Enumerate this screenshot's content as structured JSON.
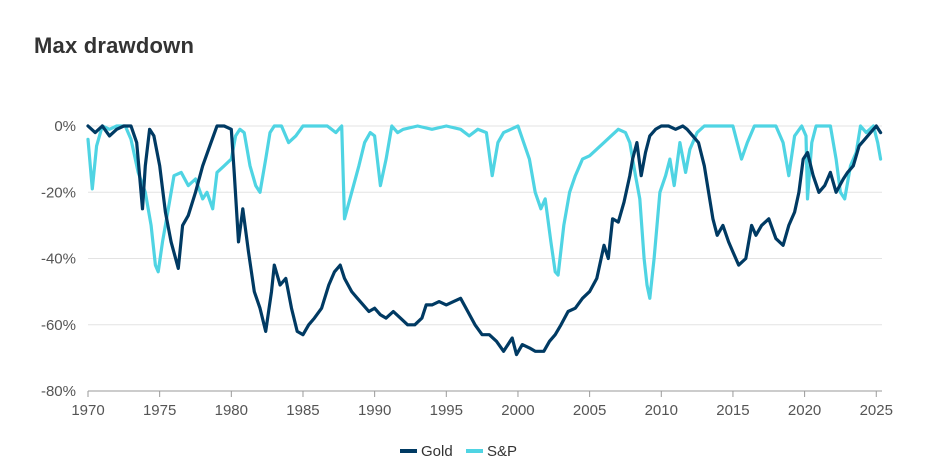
{
  "chart_data": {
    "type": "line",
    "title": "Max drawdown",
    "xlabel": "",
    "ylabel": "",
    "xlim": [
      1970,
      2025.4
    ],
    "ylim": [
      -80,
      0
    ],
    "x_ticks": [
      1970,
      1975,
      1980,
      1985,
      1990,
      1995,
      2000,
      2005,
      2010,
      2015,
      2020,
      2025
    ],
    "y_ticks": [
      0,
      -20,
      -40,
      -60,
      -80
    ],
    "y_tick_labels": [
      "0%",
      "-20%",
      "-40%",
      "-60%",
      "-80%"
    ],
    "grid": "horizontal",
    "legend": "bottom-center",
    "series": [
      {
        "name": "Gold",
        "color": "#003a63",
        "x": [
          1970.0,
          1970.5,
          1971.0,
          1971.5,
          1972.0,
          1972.5,
          1973.0,
          1973.4,
          1973.8,
          1974.0,
          1974.3,
          1974.6,
          1975.0,
          1975.4,
          1975.8,
          1976.3,
          1976.6,
          1977.0,
          1977.5,
          1978.0,
          1978.5,
          1979.0,
          1979.5,
          1980.0,
          1980.2,
          1980.5,
          1980.8,
          1981.2,
          1981.6,
          1982.0,
          1982.4,
          1982.8,
          1983.0,
          1983.4,
          1983.8,
          1984.2,
          1984.6,
          1985.0,
          1985.4,
          1985.8,
          1986.3,
          1986.8,
          1987.2,
          1987.6,
          1987.9,
          1988.4,
          1988.8,
          1989.2,
          1989.6,
          1990.0,
          1990.4,
          1990.8,
          1991.3,
          1991.8,
          1992.3,
          1992.8,
          1993.3,
          1993.6,
          1994.0,
          1994.5,
          1995.0,
          1995.5,
          1996.0,
          1996.5,
          1997.0,
          1997.5,
          1998.0,
          1998.5,
          1999.0,
          1999.6,
          1999.9,
          2000.3,
          2000.8,
          2001.2,
          2001.8,
          2002.2,
          2002.6,
          2003.0,
          2003.5,
          2004.0,
          2004.5,
          2005.0,
          2005.5,
          2006.0,
          2006.3,
          2006.6,
          2007.0,
          2007.4,
          2007.8,
          2008.0,
          2008.3,
          2008.6,
          2008.9,
          2009.2,
          2009.6,
          2010.0,
          2010.5,
          2011.0,
          2011.5,
          2011.8,
          2012.2,
          2012.6,
          2013.0,
          2013.3,
          2013.6,
          2013.9,
          2014.3,
          2014.7,
          2015.0,
          2015.4,
          2015.9,
          2016.3,
          2016.6,
          2017.0,
          2017.5,
          2018.0,
          2018.5,
          2018.9,
          2019.3,
          2019.6,
          2019.9,
          2020.2,
          2020.6,
          2021.0,
          2021.4,
          2021.8,
          2022.2,
          2022.7,
          2023.0,
          2023.4,
          2023.8,
          2024.2,
          2024.6,
          2025.0,
          2025.3
        ],
        "values": [
          0,
          -2,
          0,
          -3,
          -1,
          0,
          0,
          -5,
          -25,
          -12,
          -1,
          -3,
          -12,
          -26,
          -35,
          -43,
          -30,
          -27,
          -20,
          -12,
          -6,
          0,
          0,
          -1,
          -14,
          -35,
          -25,
          -38,
          -50,
          -55,
          -62,
          -50,
          -42,
          -48,
          -46,
          -55,
          -62,
          -63,
          -60,
          -58,
          -55,
          -48,
          -44,
          -42,
          -46,
          -50,
          -52,
          -54,
          -56,
          -55,
          -57,
          -58,
          -56,
          -58,
          -60,
          -60,
          -58,
          -54,
          -54,
          -53,
          -54,
          -53,
          -52,
          -56,
          -60,
          -63,
          -63,
          -65,
          -68,
          -64,
          -69,
          -66,
          -67,
          -68,
          -68,
          -65,
          -63,
          -60,
          -56,
          -55,
          -52,
          -50,
          -46,
          -36,
          -40,
          -28,
          -29,
          -23,
          -15,
          -10,
          -5,
          -15,
          -8,
          -3,
          -1,
          0,
          0,
          -1,
          0,
          -1,
          -3,
          -5,
          -12,
          -20,
          -28,
          -33,
          -30,
          -35,
          -38,
          -42,
          -40,
          -30,
          -33,
          -30,
          -28,
          -34,
          -36,
          -30,
          -26,
          -20,
          -10,
          -8,
          -15,
          -20,
          -18,
          -14,
          -20,
          -16,
          -14,
          -12,
          -6,
          -4,
          -2,
          0,
          -2
        ]
      },
      {
        "name": "S&P",
        "color": "#4fd4e3",
        "x": [
          1970.0,
          1970.3,
          1970.6,
          1971.0,
          1971.5,
          1972.0,
          1972.6,
          1973.0,
          1973.5,
          1974.0,
          1974.4,
          1974.7,
          1974.9,
          1975.2,
          1975.6,
          1976.0,
          1976.5,
          1977.0,
          1977.5,
          1978.0,
          1978.3,
          1978.7,
          1979.0,
          1979.5,
          1980.0,
          1980.3,
          1980.6,
          1980.9,
          1981.3,
          1981.7,
          1982.0,
          1982.4,
          1982.7,
          1983.0,
          1983.5,
          1984.0,
          1984.5,
          1985.0,
          1986.0,
          1986.7,
          1987.3,
          1987.7,
          1987.9,
          1988.4,
          1988.9,
          1989.3,
          1989.7,
          1990.0,
          1990.4,
          1990.8,
          1991.2,
          1991.6,
          1992.0,
          1993.0,
          1994.0,
          1995.0,
          1996.0,
          1996.6,
          1997.2,
          1997.8,
          1998.2,
          1998.6,
          1999.0,
          1999.5,
          2000.0,
          2000.4,
          2000.8,
          2001.2,
          2001.6,
          2001.9,
          2002.3,
          2002.6,
          2002.8,
          2003.2,
          2003.6,
          2004.0,
          2004.5,
          2005.0,
          2005.5,
          2006.0,
          2006.5,
          2007.0,
          2007.5,
          2007.8,
          2008.2,
          2008.5,
          2008.8,
          2009.0,
          2009.2,
          2009.5,
          2009.9,
          2010.3,
          2010.6,
          2010.9,
          2011.3,
          2011.7,
          2012.0,
          2012.5,
          2013.0,
          2013.5,
          2014.0,
          2015.0,
          2015.6,
          2016.0,
          2016.5,
          2017.0,
          2018.0,
          2018.5,
          2018.9,
          2019.3,
          2019.8,
          2020.1,
          2020.2,
          2020.5,
          2020.8,
          2021.3,
          2021.8,
          2022.2,
          2022.5,
          2022.8,
          2023.2,
          2023.6,
          2023.9,
          2024.3,
          2024.8,
          2025.1,
          2025.3
        ],
        "values": [
          -4,
          -19,
          -6,
          0,
          -1,
          0,
          0,
          -4,
          -14,
          -20,
          -30,
          -42,
          -44,
          -35,
          -25,
          -15,
          -14,
          -18,
          -16,
          -22,
          -20,
          -25,
          -14,
          -12,
          -10,
          -3,
          -1,
          -2,
          -12,
          -18,
          -20,
          -10,
          -2,
          0,
          0,
          -5,
          -3,
          0,
          0,
          0,
          -2,
          0,
          -28,
          -20,
          -12,
          -5,
          -2,
          -3,
          -18,
          -10,
          0,
          -2,
          -1,
          0,
          -1,
          0,
          -1,
          -3,
          -1,
          -2,
          -15,
          -5,
          -2,
          -1,
          0,
          -5,
          -10,
          -20,
          -25,
          -22,
          -35,
          -44,
          -45,
          -30,
          -20,
          -15,
          -10,
          -9,
          -7,
          -5,
          -3,
          -1,
          -2,
          -5,
          -15,
          -22,
          -40,
          -48,
          -52,
          -40,
          -20,
          -15,
          -10,
          -18,
          -5,
          -14,
          -7,
          -2,
          0,
          0,
          0,
          0,
          -10,
          -5,
          0,
          0,
          0,
          -5,
          -15,
          -3,
          0,
          -3,
          -22,
          -5,
          0,
          0,
          0,
          -10,
          -20,
          -22,
          -12,
          -8,
          0,
          -2,
          0,
          -5,
          -10
        ]
      }
    ]
  }
}
